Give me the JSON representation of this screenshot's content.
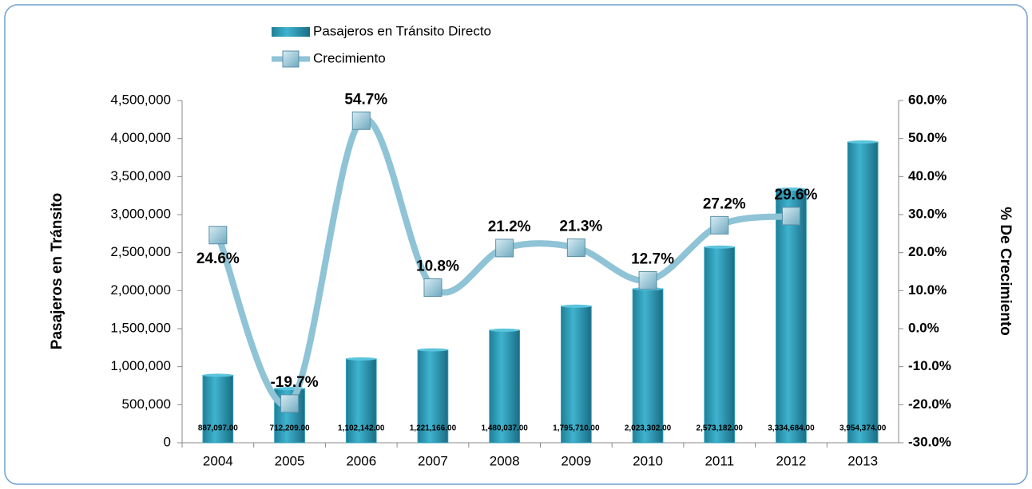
{
  "chart_data": {
    "type": "bar-line",
    "categories": [
      "2004",
      "2005",
      "2006",
      "2007",
      "2008",
      "2009",
      "2010",
      "2011",
      "2012",
      "2013"
    ],
    "series": [
      {
        "name": "Pasajeros en Tránsito Directo",
        "type": "bar",
        "color": "#2a9ab6",
        "values": [
          887097,
          712209,
          1102142,
          1221166,
          1480037,
          1795710,
          2023302,
          2573182,
          3334684,
          3954374
        ],
        "value_labels": [
          "887,097.00",
          "712,209.00",
          "1,102,142.00",
          "1,221,166.00",
          "1,480,037.00",
          "1,795,710.00",
          "2,023,302.00",
          "2,573,182.00",
          "3,334,684.00",
          "3,954,374.00"
        ]
      },
      {
        "name": "Crecimiento",
        "type": "line",
        "axis": "y2",
        "color": "#8fc3d6",
        "values": [
          24.6,
          -19.7,
          54.7,
          10.8,
          21.2,
          21.3,
          12.7,
          27.2,
          29.6,
          null
        ],
        "value_labels": [
          "24.6%",
          "-19.7%",
          "54.7%",
          "10.8%",
          "21.2%",
          "21.3%",
          "12.7%",
          "27.2%",
          "29.6%",
          null
        ]
      }
    ],
    "ylabel": "Pasajeros en Tránsito",
    "y2label": "% De Crecimiento",
    "ylim": [
      0,
      4500000
    ],
    "yticks": [
      0,
      {
        "value": 500000,
        "label": "500,000"
      },
      {
        "value": 1000000,
        "label": "1,000,000"
      },
      {
        "value": 1500000,
        "label": "1,500,000"
      },
      {
        "value": 2000000,
        "label": "2,000,000"
      },
      {
        "value": 2500000,
        "label": "2,500,000"
      },
      {
        "value": 3000000,
        "label": "3,000,000"
      },
      {
        "value": 3500000,
        "label": "3,500,000"
      },
      {
        "value": 4000000,
        "label": "4,000,000"
      },
      {
        "value": 4500000,
        "label": "4,500,000"
      }
    ],
    "y2lim": [
      -30,
      60
    ],
    "y2ticks": [
      {
        "value": -30,
        "label": "-30.0%"
      },
      {
        "value": -20,
        "label": "-20.0%"
      },
      {
        "value": -10,
        "label": "-10.0%"
      },
      {
        "value": 0,
        "label": "0.0%"
      },
      {
        "value": 10,
        "label": "10.0%"
      },
      {
        "value": 20,
        "label": "20.0%"
      },
      {
        "value": 30,
        "label": "30.0%"
      },
      {
        "value": 40,
        "label": "40.0%"
      },
      {
        "value": 50,
        "label": "50.0%"
      },
      {
        "value": 60,
        "label": "60.0%"
      }
    ],
    "legend": "top"
  }
}
